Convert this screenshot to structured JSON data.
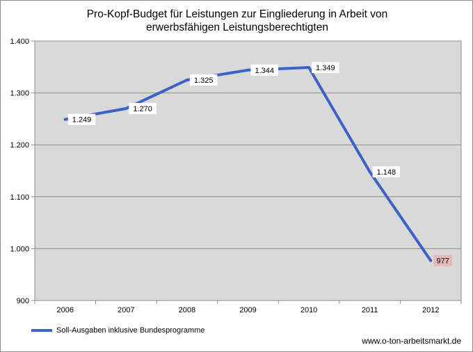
{
  "chart_data": {
    "type": "line",
    "title_lines": [
      "Pro-Kopf-Budget für Leistungen zur Eingliederung in Arbeit von",
      "erwerbsfähigen Leistungsberechtigten"
    ],
    "categories": [
      "2006",
      "2007",
      "2008",
      "2009",
      "2010",
      "2011",
      "2012"
    ],
    "series": [
      {
        "name": "Soll-Ausgaben inklusive Bundesprogramme",
        "values": [
          1249,
          1270,
          1325,
          1344,
          1349,
          1148,
          977
        ],
        "labels": [
          "1.249",
          "1.270",
          "1.325",
          "1.344",
          "1.349",
          "1.148",
          "977"
        ],
        "color": "#3b62c6"
      }
    ],
    "ylim": [
      900,
      1400
    ],
    "yticks": [
      900,
      1000,
      1100,
      1200,
      1300,
      1400
    ],
    "ytick_labels": [
      "900",
      "1.000",
      "1.100",
      "1.200",
      "1.300",
      "1.400"
    ],
    "grid": true,
    "legend_position": "bottom-left",
    "highlight_color": "#e6b8b8",
    "plot_background": "#d9d9d9"
  },
  "source": "www.o-ton-arbeitsmarkt.de"
}
